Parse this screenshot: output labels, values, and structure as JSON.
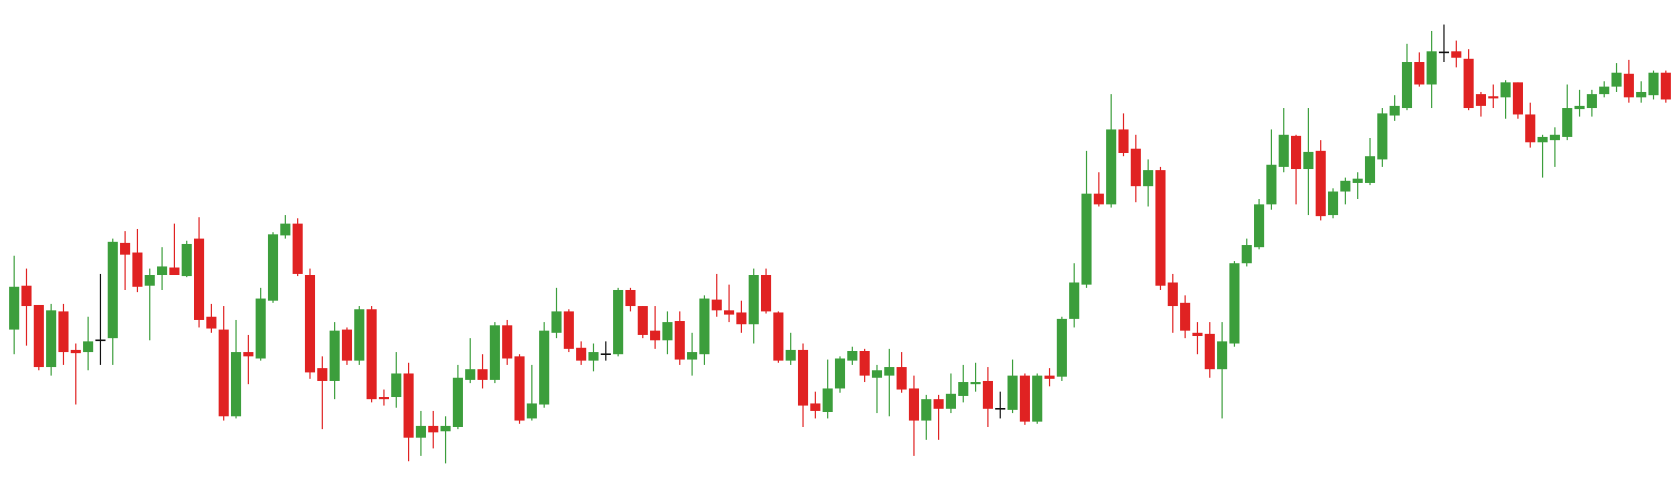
{
  "chart_data": {
    "type": "candlestick",
    "up_color": "#3c9e3c",
    "down_color": "#e02222",
    "doji_color": "#111111",
    "ylim": [
      0,
      455
    ],
    "open": [
      148,
      189,
      171,
      113,
      165,
      129,
      127,
      138,
      140,
      229,
      220,
      189,
      199,
      206,
      198,
      233,
      160,
      148,
      67,
      127,
      121,
      175,
      236,
      247,
      199,
      112,
      100,
      148,
      119,
      167,
      85,
      85,
      107,
      47,
      58,
      53,
      57,
      101,
      111,
      101,
      152,
      123,
      65,
      78,
      145,
      165,
      131,
      119,
      125,
      125,
      185,
      170,
      147,
      138,
      156,
      120,
      125,
      176,
      166,
      164,
      153,
      199,
      164,
      119,
      129,
      79,
      71,
      93,
      119,
      128,
      103,
      105,
      113,
      93,
      63,
      83,
      74,
      86,
      97,
      100,
      74,
      73,
      105,
      62,
      105,
      104,
      158,
      190,
      275,
      265,
      335,
      317,
      282,
      297,
      192,
      173,
      145,
      144,
      111,
      135,
      210,
      225,
      265,
      300,
      329,
      298,
      315,
      255,
      277,
      285,
      285,
      307,
      348,
      355,
      398,
      377,
      407,
      408,
      401,
      368,
      366,
      365,
      379,
      349,
      323,
      325,
      328,
      354,
      355,
      368,
      375,
      387,
      365,
      367,
      388
    ],
    "high": [
      217,
      205,
      171,
      172,
      172,
      135,
      160,
      200,
      233,
      240,
      242,
      205,
      225,
      247,
      231,
      253,
      172,
      170,
      157,
      143,
      187,
      239,
      255,
      252,
      205,
      123,
      155,
      150,
      170,
      170,
      92,
      127,
      117,
      72,
      72,
      67,
      115,
      140,
      125,
      155,
      157,
      125,
      115,
      155,
      187,
      167,
      137,
      135,
      137,
      187,
      187,
      170,
      170,
      165,
      165,
      145,
      180,
      200,
      190,
      175,
      205,
      205,
      165,
      145,
      135,
      90,
      120,
      123,
      132,
      130,
      115,
      130,
      127,
      105,
      87,
      87,
      107,
      115,
      117,
      113,
      90,
      120,
      107,
      107,
      112,
      160,
      210,
      315,
      295,
      368,
      350,
      330,
      307,
      300,
      200,
      180,
      155,
      155,
      155,
      212,
      233,
      270,
      335,
      355,
      330,
      355,
      325,
      280,
      290,
      295,
      327,
      355,
      367,
      415,
      407,
      427,
      433,
      418,
      410,
      370,
      377,
      381,
      379,
      360,
      330,
      337,
      377,
      372,
      372,
      380,
      397,
      400,
      380,
      390,
      390
    ],
    "low": [
      125,
      133,
      110,
      105,
      115,
      78,
      110,
      115,
      115,
      185,
      183,
      138,
      185,
      199,
      197,
      150,
      145,
      63,
      65,
      97,
      119,
      173,
      233,
      198,
      102,
      55,
      83,
      115,
      115,
      80,
      77,
      75,
      25,
      30,
      37,
      23,
      55,
      98,
      93,
      98,
      115,
      60,
      63,
      75,
      140,
      127,
      115,
      109,
      119,
      123,
      165,
      140,
      130,
      125,
      115,
      105,
      115,
      160,
      155,
      145,
      135,
      163,
      117,
      115,
      57,
      65,
      65,
      89,
      115,
      99,
      70,
      67,
      89,
      30,
      45,
      45,
      70,
      80,
      90,
      57,
      65,
      70,
      59,
      60,
      95,
      100,
      150,
      187,
      263,
      262,
      310,
      267,
      263,
      185,
      145,
      140,
      125,
      103,
      65,
      132,
      207,
      223,
      260,
      295,
      265,
      255,
      250,
      252,
      265,
      270,
      283,
      300,
      343,
      353,
      375,
      355,
      398,
      393,
      353,
      347,
      355,
      345,
      345,
      318,
      290,
      300,
      325,
      347,
      347,
      365,
      370,
      360,
      360,
      363,
      360
    ],
    "close": [
      188,
      170,
      113,
      166,
      127,
      126,
      137,
      138,
      230,
      218,
      188,
      199,
      207,
      199,
      228,
      157,
      149,
      67,
      127,
      123,
      177,
      237,
      247,
      200,
      108,
      100,
      147,
      119,
      167,
      83,
      83,
      107,
      47,
      58,
      52,
      58,
      103,
      111,
      101,
      152,
      121,
      63,
      79,
      147,
      165,
      130,
      119,
      127,
      125,
      185,
      170,
      143,
      138,
      155,
      120,
      127,
      177,
      166,
      162,
      153,
      199,
      165,
      119,
      129,
      77,
      72,
      93,
      121,
      128,
      105,
      110,
      113,
      92,
      63,
      83,
      74,
      88,
      99,
      99,
      74,
      74,
      105,
      62,
      105,
      102,
      158,
      192,
      275,
      265,
      335,
      313,
      282,
      297,
      189,
      170,
      147,
      142,
      111,
      137,
      210,
      227,
      265,
      302,
      330,
      298,
      314,
      254,
      277,
      287,
      289,
      310,
      350,
      357,
      398,
      377,
      408,
      407,
      402,
      355,
      357,
      364,
      379,
      349,
      323,
      328,
      330,
      355,
      357,
      368,
      375,
      388,
      365,
      370,
      388,
      363
    ]
  }
}
